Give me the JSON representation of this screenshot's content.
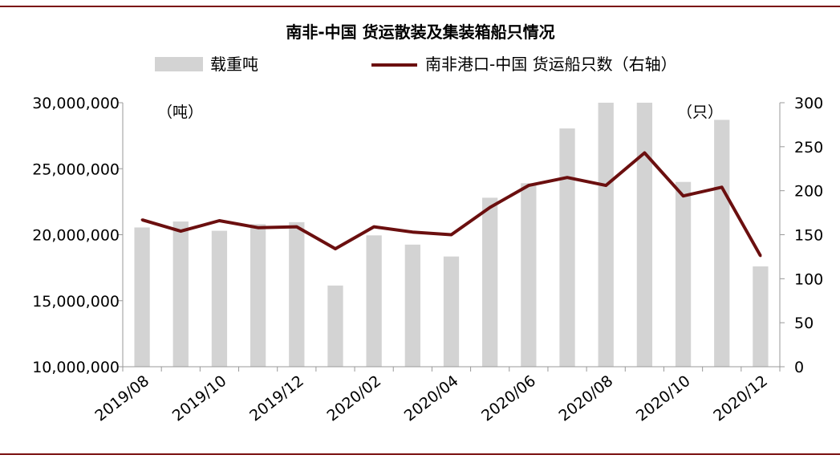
{
  "chart_data": {
    "type": "bar+line",
    "title": "南非-中国  货运散装及集装箱船只情况",
    "categories": [
      "2019/08",
      "2019/09",
      "2019/10",
      "2019/11",
      "2019/12",
      "2020/01",
      "2020/02",
      "2020/03",
      "2020/04",
      "2020/05",
      "2020/06",
      "2020/07",
      "2020/08",
      "2020/09",
      "2020/10",
      "2020/11",
      "2020/12"
    ],
    "x_tick_labels": [
      "2019/08",
      "2019/10",
      "2019/12",
      "2020/02",
      "2020/04",
      "2020/06",
      "2020/08",
      "2020/10",
      "2020/12"
    ],
    "series": [
      {
        "name": "载重吨",
        "type": "bar",
        "axis": "left",
        "color": "#d3d3d3",
        "values": [
          20550000,
          21000000,
          20300000,
          20800000,
          20950000,
          16150000,
          19950000,
          19250000,
          18350000,
          22800000,
          23900000,
          28050000,
          30000000,
          30000000,
          24000000,
          28700000,
          17600000
        ]
      },
      {
        "name": "南非港口-中国 货运船只数（右轴）",
        "type": "line",
        "axis": "right",
        "color": "#6b0f0f",
        "values": [
          167,
          154,
          166,
          158,
          159,
          134,
          159,
          153,
          150,
          181,
          206,
          215,
          206,
          243,
          194,
          204,
          126
        ]
      }
    ],
    "y_left": {
      "unit": "（吨）",
      "min": 10000000,
      "max": 30000000,
      "ticks": [
        "10,000,000",
        "15,000,000",
        "20,000,000",
        "25,000,000",
        "30,000,000"
      ],
      "tick_values": [
        10000000,
        15000000,
        20000000,
        25000000,
        30000000
      ]
    },
    "y_right": {
      "unit": "（只）",
      "min": 0,
      "max": 300,
      "ticks": [
        "0",
        "50",
        "100",
        "150",
        "200",
        "250",
        "300"
      ],
      "tick_values": [
        0,
        50,
        100,
        150,
        200,
        250,
        300
      ]
    },
    "legend_position": "top",
    "grid": false
  },
  "colors": {
    "frame_line": "#7a0f0f",
    "bar": "#d3d3d3",
    "line": "#6b0f0f"
  }
}
